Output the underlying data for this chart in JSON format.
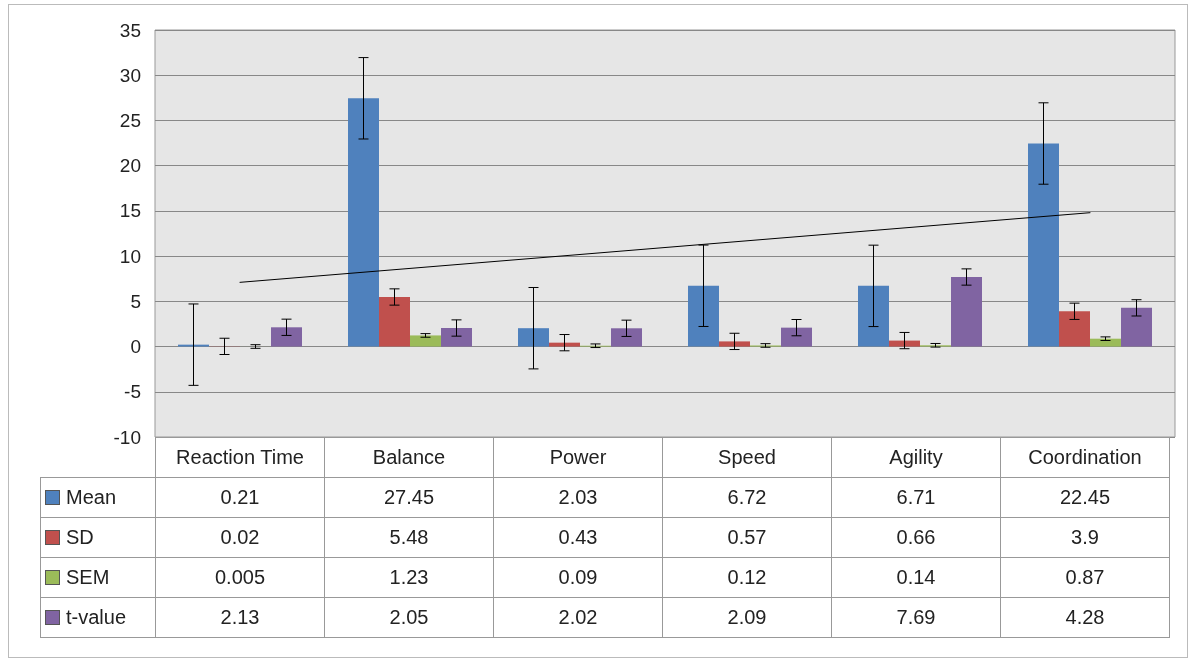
{
  "chart_data": {
    "type": "bar",
    "categories": [
      "Reaction Time",
      "Balance",
      "Power",
      "Speed",
      "Agility",
      "Coordination"
    ],
    "series": [
      {
        "name": "Mean",
        "color": "#4f81bd",
        "values": [
          0.21,
          27.45,
          2.03,
          6.72,
          6.71,
          22.45
        ],
        "errors": [
          4.5,
          4.5,
          4.5,
          4.5,
          4.5,
          4.5
        ]
      },
      {
        "name": "SD",
        "color": "#c0504d",
        "values": [
          0.02,
          5.48,
          0.43,
          0.57,
          0.66,
          3.9
        ],
        "errors": [
          0.9,
          0.9,
          0.9,
          0.9,
          0.9,
          0.9
        ]
      },
      {
        "name": "SEM",
        "color": "#9bbb59",
        "values": [
          0.005,
          1.23,
          0.09,
          0.12,
          0.14,
          0.87
        ],
        "errors": [
          0.2,
          0.2,
          0.2,
          0.2,
          0.2,
          0.2
        ]
      },
      {
        "name": "t-value",
        "color": "#8064a2",
        "values": [
          2.13,
          2.05,
          2.02,
          2.09,
          7.69,
          4.28
        ],
        "errors": [
          0.9,
          0.9,
          0.9,
          0.9,
          0.9,
          0.9
        ]
      },
      {
        "type": "line",
        "color": "#000000",
        "x": [
          "Reaction Time",
          "Coordination"
        ],
        "values": [
          7.1,
          14.8
        ],
        "value_labels": [
          null,
          null
        ]
      }
    ],
    "ylim": [
      -10,
      35
    ],
    "yticks": [
      -10,
      -5,
      0,
      5,
      10,
      15,
      20,
      25,
      30,
      35
    ],
    "grid": "y",
    "legend": "bottom",
    "data_labels": true,
    "marker": "none"
  }
}
